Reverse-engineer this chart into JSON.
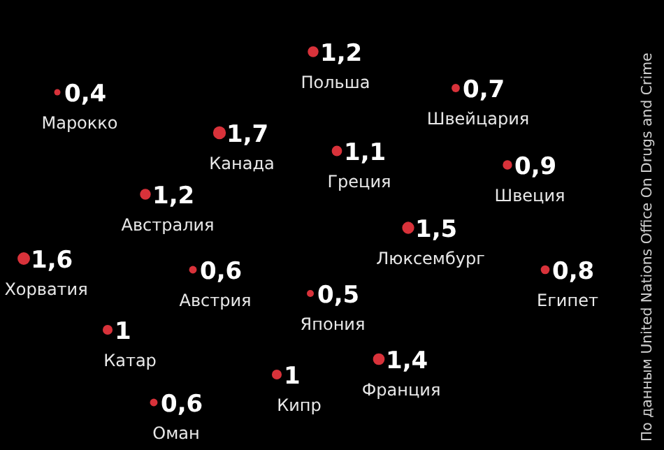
{
  "chart_data": {
    "type": "other",
    "categories": [
      "Польша",
      "Марокко",
      "Швейцария",
      "Канада",
      "Греция",
      "Швеция",
      "Австралия",
      "Люксембург",
      "Хорватия",
      "Австрия",
      "Египет",
      "Япония",
      "Катар",
      "Франция",
      "Кипр",
      "Оман"
    ],
    "values": [
      1.2,
      0.4,
      0.7,
      1.7,
      1.1,
      0.9,
      1.2,
      1.5,
      1.6,
      0.6,
      0.8,
      0.5,
      1,
      1.4,
      1,
      0.6
    ],
    "value_labels": [
      "1,2",
      "0,4",
      "0,7",
      "1,7",
      "1,1",
      "0,9",
      "1,2",
      "1,5",
      "1,6",
      "0,6",
      "0,8",
      "0,5",
      "1",
      "1,4",
      "1",
      "0,6"
    ],
    "color": "#d8323a",
    "annotations": [
      "По данным United Nations Office On Drugs and Crime"
    ]
  }
}
